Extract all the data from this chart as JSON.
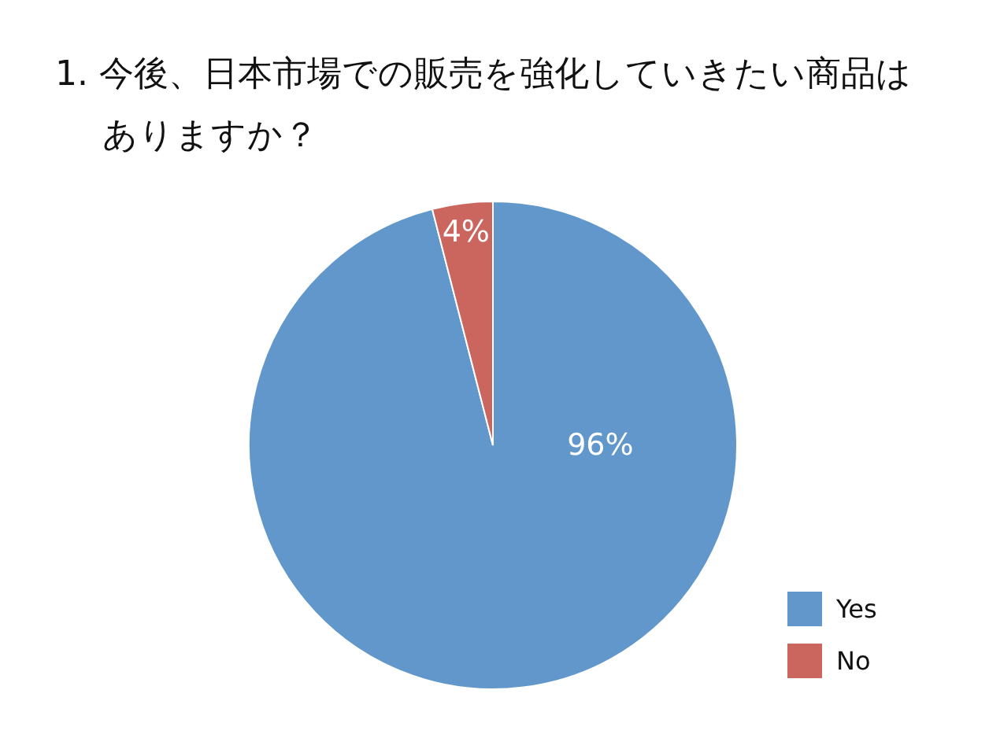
{
  "chart_data": {
    "type": "pie",
    "title": "1. 今後、日本市場での販売を強化していきたい商品はありますか？",
    "categories": [
      "Yes",
      "No"
    ],
    "values": [
      96,
      4
    ],
    "colors": [
      "#6197cb",
      "#cb665e"
    ],
    "value_labels": [
      "96%",
      "4%"
    ],
    "legend": "bottom right"
  }
}
